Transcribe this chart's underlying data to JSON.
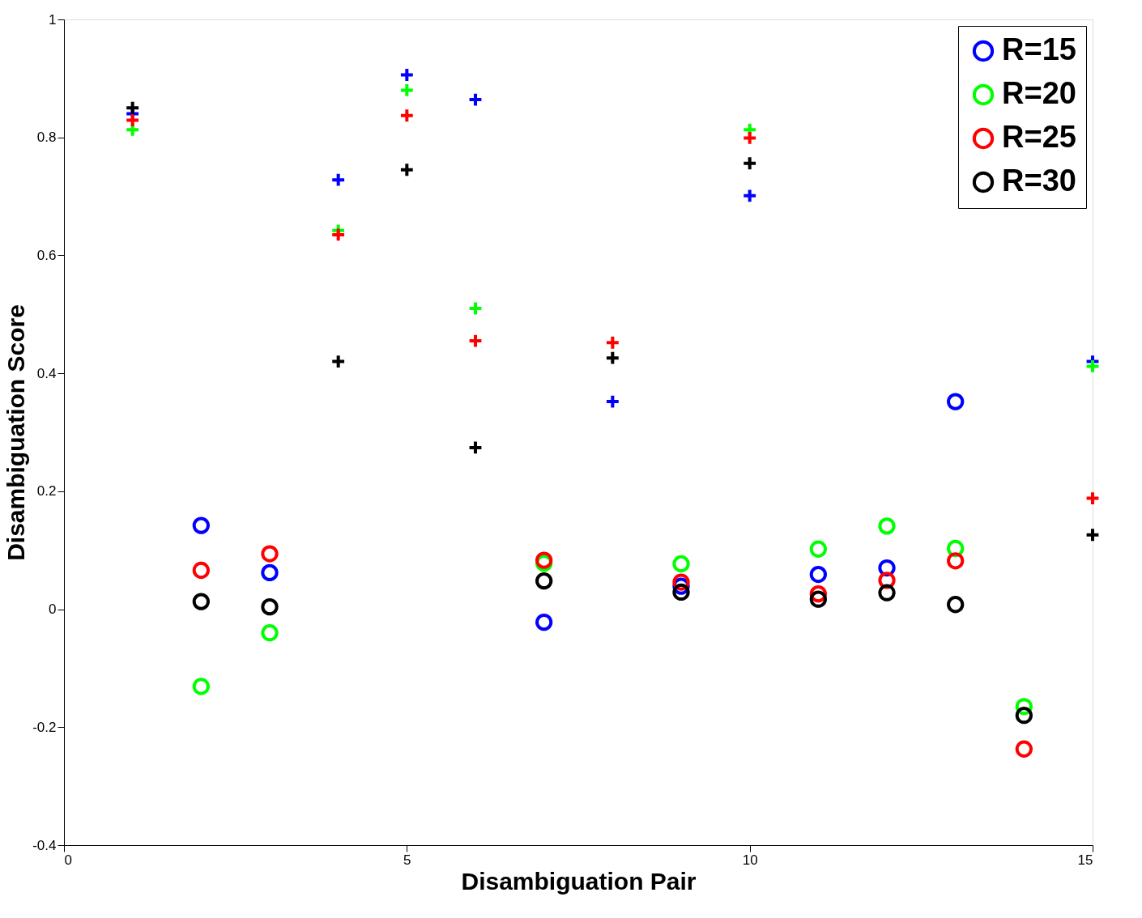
{
  "chart_data": {
    "type": "scatter",
    "xlabel": "Disambiguation Pair",
    "ylabel": "Disambiguation Score",
    "xlim": [
      0,
      15
    ],
    "ylim": [
      -0.4,
      1
    ],
    "xticks": [
      0,
      5,
      10,
      15
    ],
    "yticks": [
      -0.4,
      -0.2,
      0,
      0.2,
      0.4,
      0.6,
      0.8,
      1
    ],
    "grid": false,
    "legend": "top right",
    "series": [
      {
        "name": "R=15",
        "color": "#0000ff",
        "marker": "circle",
        "x": [
          2,
          3,
          7,
          9,
          11,
          12,
          13
        ],
        "values": [
          0.142,
          0.062,
          -0.022,
          0.039,
          0.059,
          0.07,
          0.352
        ]
      },
      {
        "name": "R=20",
        "color": "#00ff00",
        "marker": "circle",
        "x": [
          2,
          3,
          7,
          9,
          11,
          12,
          13,
          14
        ],
        "values": [
          -0.131,
          -0.04,
          0.078,
          0.077,
          0.102,
          0.141,
          0.103,
          -0.165
        ]
      },
      {
        "name": "R=25",
        "color": "#ff0000",
        "marker": "circle",
        "x": [
          2,
          3,
          7,
          9,
          11,
          12,
          13,
          14
        ],
        "values": [
          0.066,
          0.094,
          0.083,
          0.046,
          0.026,
          0.049,
          0.082,
          -0.237
        ]
      },
      {
        "name": "R=30",
        "color": "#000000",
        "marker": "circle",
        "x": [
          2,
          3,
          7,
          9,
          11,
          12,
          13,
          14
        ],
        "values": [
          0.013,
          0.004,
          0.048,
          0.029,
          0.017,
          0.028,
          0.008,
          -0.18
        ]
      },
      {
        "color": "#0000ff",
        "marker": "cross",
        "x": [
          1,
          4,
          5,
          6,
          8,
          10,
          15
        ],
        "values": [
          0.84,
          0.728,
          0.906,
          0.864,
          0.352,
          0.701,
          0.42
        ]
      },
      {
        "color": "#00ff00",
        "marker": "cross",
        "x": [
          1,
          4,
          5,
          6,
          10,
          15
        ],
        "values": [
          0.813,
          0.642,
          0.88,
          0.51,
          0.813,
          0.412
        ]
      },
      {
        "color": "#ff0000",
        "marker": "cross",
        "x": [
          1,
          4,
          5,
          6,
          8,
          10,
          15
        ],
        "values": [
          0.829,
          0.635,
          0.837,
          0.455,
          0.452,
          0.799,
          0.188
        ]
      },
      {
        "color": "#000000",
        "marker": "cross",
        "x": [
          1,
          4,
          5,
          6,
          8,
          10,
          15
        ],
        "values": [
          0.85,
          0.42,
          0.745,
          0.274,
          0.426,
          0.756,
          0.126
        ]
      }
    ]
  }
}
